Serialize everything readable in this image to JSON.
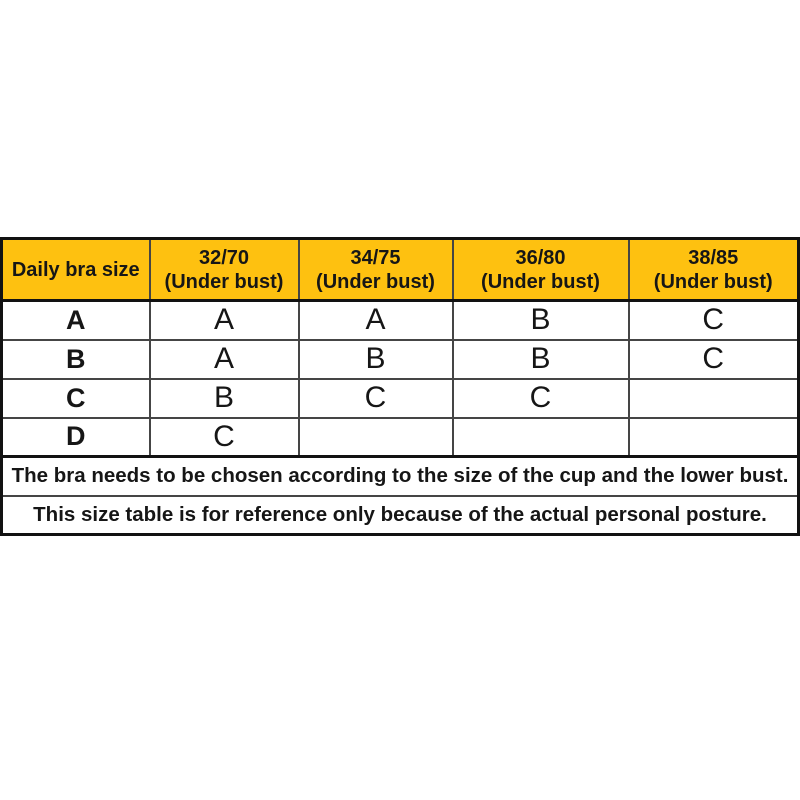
{
  "size_chart": {
    "corner_header": "Daily bra size",
    "band_columns": [
      {
        "size": "32/70",
        "note": "(Under bust)"
      },
      {
        "size": "34/75",
        "note": "(Under bust)"
      },
      {
        "size": "36/80",
        "note": "(Under bust)"
      },
      {
        "size": "38/85",
        "note": "(Under bust)"
      }
    ],
    "cup_rows": [
      {
        "label": "A",
        "cells": [
          "A",
          "A",
          "B",
          "C"
        ]
      },
      {
        "label": "B",
        "cells": [
          "A",
          "B",
          "B",
          "C"
        ]
      },
      {
        "label": "C",
        "cells": [
          "B",
          "C",
          "C",
          ""
        ]
      },
      {
        "label": "D",
        "cells": [
          "C",
          "",
          "",
          ""
        ]
      }
    ],
    "footnotes": [
      "The bra needs to be chosen according to the size of the cup and the lower bust.",
      "This size table is for reference only because of the actual personal posture."
    ],
    "colors": {
      "header_bg": "#fec110",
      "grid_line": "#454545",
      "outer_line": "#121212",
      "text": "#161616",
      "page_bg": "#ffffff"
    }
  },
  "chart_data": {
    "type": "table",
    "title": "Daily bra size chart",
    "columns": [
      "Daily bra size",
      "32/70 (Under bust)",
      "34/75 (Under bust)",
      "36/80 (Under bust)",
      "38/85 (Under bust)"
    ],
    "rows": [
      [
        "A",
        "A",
        "A",
        "B",
        "C"
      ],
      [
        "B",
        "A",
        "B",
        "B",
        "C"
      ],
      [
        "C",
        "B",
        "C",
        "C",
        ""
      ],
      [
        "D",
        "C",
        "",
        "",
        ""
      ]
    ],
    "footnotes": [
      "The bra needs to be chosen according to the size of the cup and the lower bust.",
      "This size table is for reference only because of the actual personal posture."
    ],
    "legend_position": "none",
    "grid": true
  }
}
